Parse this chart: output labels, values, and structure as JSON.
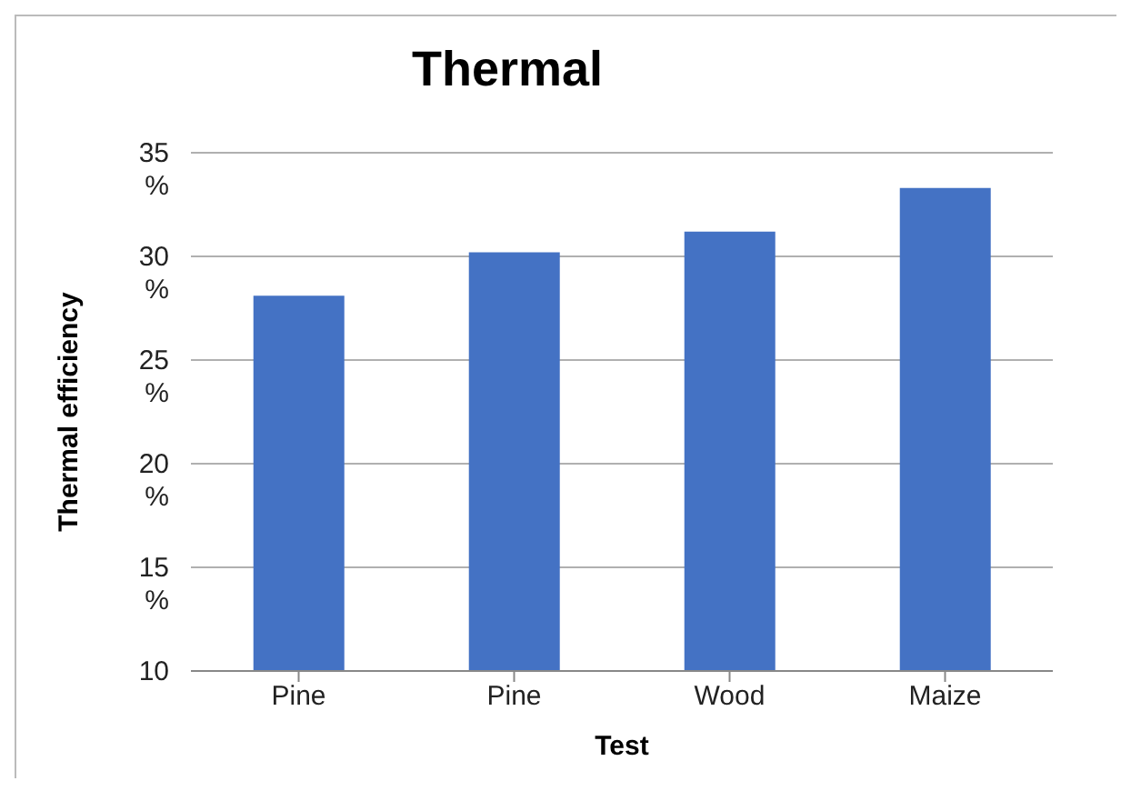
{
  "chart_data": {
    "type": "bar",
    "title": "Thermal",
    "xlabel": "Test",
    "ylabel": "Thermal efficiency",
    "categories": [
      "Pine",
      "Pine",
      "Wood",
      "Maize"
    ],
    "values": [
      28.1,
      30.2,
      31.2,
      33.3
    ],
    "color": "#4472c4",
    "ylim": [
      10,
      35
    ],
    "yticks": [
      10,
      {
        "value": 15,
        "label": "15 %"
      },
      {
        "value": 20,
        "label": "20 %"
      },
      {
        "value": 25,
        "label": "25 %"
      },
      {
        "value": 30,
        "label": "30 %"
      },
      {
        "value": 35,
        "label": "35 %"
      }
    ],
    "grid": "y"
  }
}
